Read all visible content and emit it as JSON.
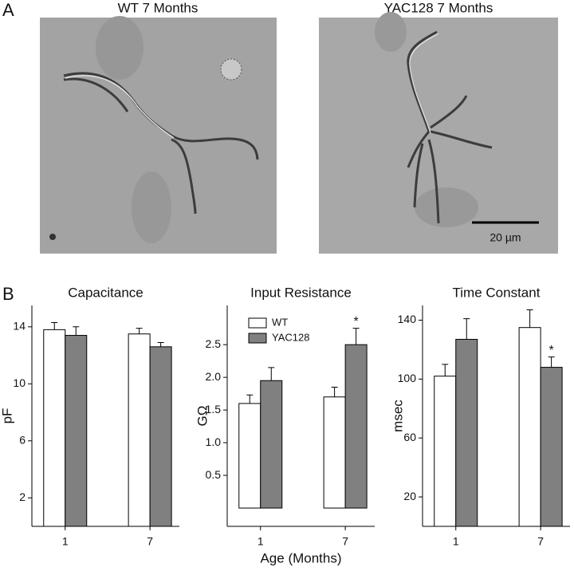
{
  "panel_labels": [
    "A",
    "B"
  ],
  "images": [
    {
      "title": "WT  7 Months"
    },
    {
      "title": "YAC128  7 Months"
    }
  ],
  "scale_bar": "20 µm",
  "chart_data": [
    {
      "type": "bar",
      "title": "Capacitance",
      "ylabel": "pF",
      "categories": [
        "1",
        "7"
      ],
      "series": [
        {
          "name": "WT",
          "color": "#ffffff",
          "values": [
            13.8,
            13.5
          ],
          "errors": [
            0.5,
            0.4
          ]
        },
        {
          "name": "YAC128",
          "color": "#808080",
          "values": [
            13.4,
            12.6
          ],
          "errors": [
            0.6,
            0.3
          ]
        }
      ],
      "ylim": [
        0,
        15.5
      ],
      "yticks": [
        2,
        6,
        10,
        14
      ]
    },
    {
      "type": "bar",
      "title": "Input Resistance",
      "ylabel": "GΩ",
      "xlabel": "Age (Months)",
      "categories": [
        "1",
        "7"
      ],
      "series": [
        {
          "name": "WT",
          "color": "#ffffff",
          "values": [
            1.6,
            1.7
          ],
          "errors": [
            0.13,
            0.15
          ]
        },
        {
          "name": "YAC128",
          "color": "#808080",
          "values": [
            1.95,
            2.5
          ],
          "errors": [
            0.2,
            0.25
          ],
          "markers": [
            null,
            "*"
          ]
        }
      ],
      "ylim": [
        -0.28,
        3.1
      ],
      "yticks": [
        0.5,
        {
          "value": 1,
          "label": "1.0"
        },
        1.5,
        {
          "value": 2,
          "label": "2.0"
        },
        2.5
      ],
      "legend": "upper left"
    },
    {
      "type": "bar",
      "title": "Time Constant",
      "ylabel": "msec",
      "categories": [
        "1",
        "7"
      ],
      "series": [
        {
          "name": "WT",
          "color": "#ffffff",
          "values": [
            102,
            135
          ],
          "errors": [
            8,
            12
          ]
        },
        {
          "name": "YAC128",
          "color": "#808080",
          "values": [
            127,
            108
          ],
          "errors": [
            14,
            7
          ],
          "markers": [
            null,
            "*"
          ]
        }
      ],
      "ylim": [
        0,
        150
      ],
      "yticks": [
        20,
        60,
        100,
        140
      ]
    }
  ]
}
